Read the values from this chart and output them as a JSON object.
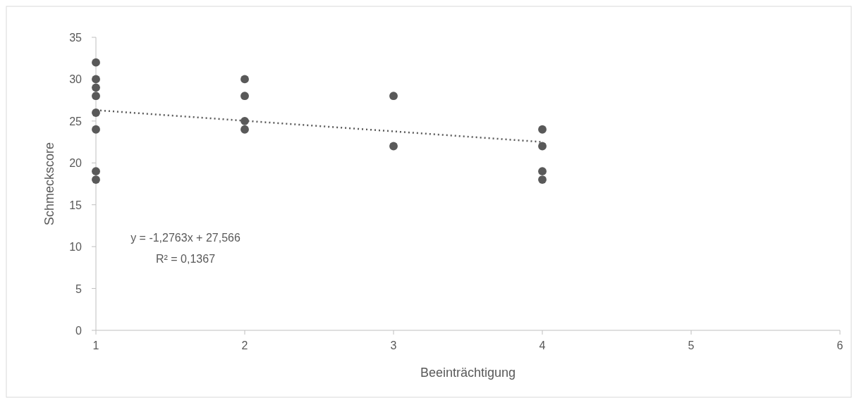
{
  "chart_data": {
    "type": "scatter",
    "xlabel": "Beeinträchtigung",
    "ylabel": "Schmeckscore",
    "xlim": [
      1,
      6
    ],
    "xticks": [
      1,
      2,
      3,
      4,
      5,
      6
    ],
    "ylim": [
      0,
      35
    ],
    "yticks": [
      0,
      5,
      10,
      15,
      20,
      25,
      30,
      35
    ],
    "grid": false,
    "series": [
      {
        "color": "#595959",
        "marker": "circle",
        "x": [
          1,
          1,
          1,
          1,
          1,
          1,
          1,
          1,
          2,
          2,
          2,
          2,
          3,
          3,
          4,
          4,
          4,
          4
        ],
        "values": [
          32,
          30,
          29,
          28,
          26,
          24,
          19,
          18,
          30,
          28,
          25,
          24,
          28,
          22,
          24,
          22,
          19,
          18
        ]
      },
      {
        "type": "line",
        "color": "#595959",
        "marker": "none",
        "line_style": "dotted",
        "x": [
          1,
          4
        ],
        "values": [
          26.3,
          22.5
        ]
      }
    ],
    "annotations": [
      "y = -1,2763x + 27,566",
      "R² = 0,1367"
    ]
  }
}
